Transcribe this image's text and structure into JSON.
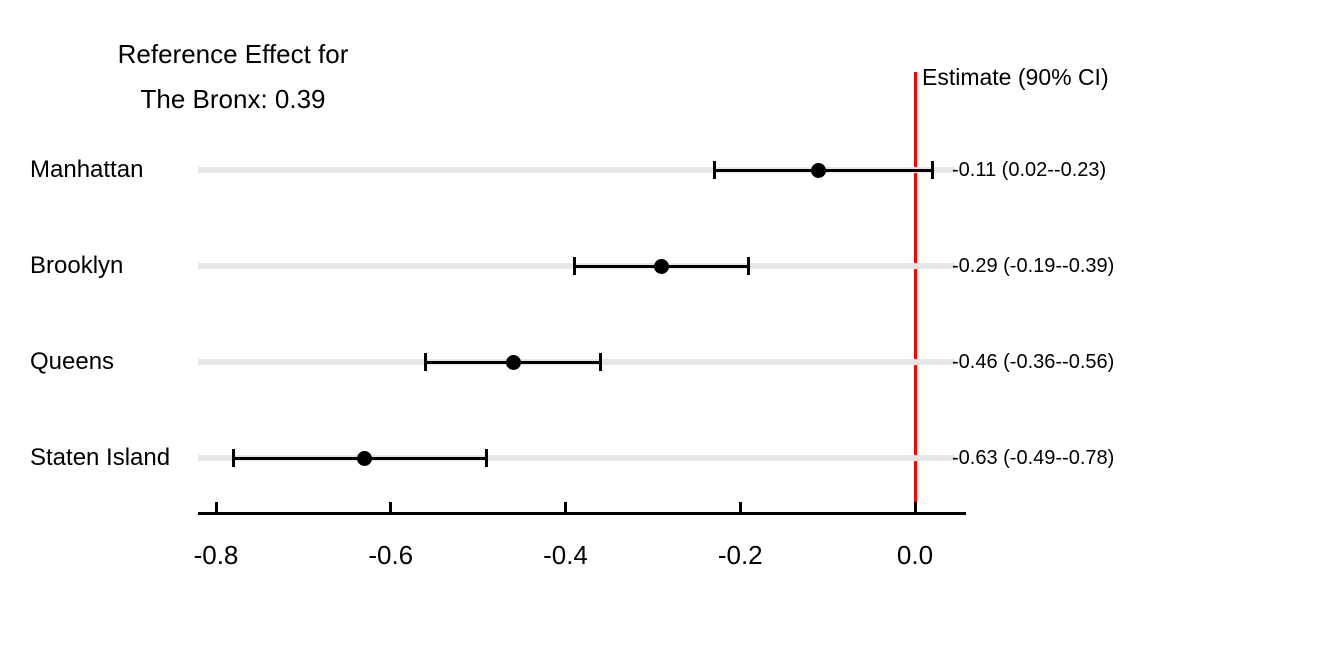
{
  "chart_data": {
    "type": "scatter",
    "subtype": "forest-plot",
    "title_lines": [
      "Reference Effect for",
      "The Bronx: 0.39"
    ],
    "right_header": "Estimate (90% CI)",
    "categories": [
      "Manhattan",
      "Brooklyn",
      "Queens",
      "Staten Island"
    ],
    "estimates": [
      -0.11,
      -0.29,
      -0.46,
      -0.63
    ],
    "ci_lower": [
      -0.23,
      -0.39,
      -0.56,
      -0.78
    ],
    "ci_upper": [
      0.02,
      -0.19,
      -0.36,
      -0.49
    ],
    "estimate_labels": [
      "-0.11 (0.02--0.23)",
      "-0.29 (-0.19--0.39)",
      "-0.46 (-0.36--0.56)",
      "-0.63 (-0.49--0.78)"
    ],
    "x_tick_labels": [
      "-0.8",
      "-0.6",
      "-0.4",
      "-0.2",
      "0.0"
    ],
    "x_tick_values": [
      -0.8,
      -0.6,
      -0.4,
      -0.2,
      0.0
    ],
    "xlim": [
      -0.82,
      0.06
    ],
    "reference_line_x": 0.0,
    "legend_position": "none",
    "grid": "horizontal row tracks only",
    "colors": {
      "reference_line": "#FF0000",
      "track": "#E6E6E6",
      "data": "#000000",
      "text": "#000000",
      "background": "#FFFFFF"
    }
  }
}
